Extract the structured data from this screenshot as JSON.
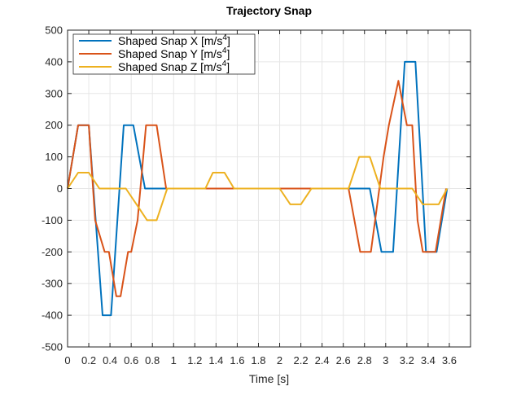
{
  "chart_data": {
    "type": "line",
    "title": "Trajectory Snap",
    "xlabel": "Time [s]",
    "ylabel": "",
    "xlim": [
      0,
      3.8
    ],
    "ylim": [
      -500,
      500
    ],
    "grid": true,
    "legend_location": "top-left",
    "x_ticks": [
      "0",
      "0.2",
      "0.4",
      "0.6",
      "0.8",
      "1",
      "1.2",
      "1.4",
      "1.6",
      "1.8",
      "2",
      "2.2",
      "2.4",
      "2.6",
      "2.8",
      "3",
      "3.2",
      "3.4",
      "3.6"
    ],
    "y_ticks": [
      "500",
      "400",
      "300",
      "200",
      "100",
      "0",
      "-100",
      "-200",
      "-300",
      "-400",
      "-500"
    ],
    "series": [
      {
        "name": "Shaped Snap X [m/s",
        "name_sup": "4",
        "name_suffix": "]",
        "color": "#0072BD",
        "x": [
          0,
          0.1,
          0.2,
          0.33,
          0.41,
          0.53,
          0.62,
          0.73,
          0.93,
          1.6,
          2.65,
          2.85,
          2.96,
          3.07,
          3.18,
          3.28,
          3.38,
          3.48,
          3.58
        ],
        "y": [
          0,
          200,
          200,
          -400,
          -400,
          200,
          200,
          0,
          0,
          0,
          0,
          0,
          -200,
          -200,
          400,
          400,
          -200,
          -200,
          0
        ]
      },
      {
        "name": "Shaped Snap Y [m/s",
        "name_sup": "4",
        "name_suffix": "]",
        "color": "#D95319",
        "x": [
          0,
          0.1,
          0.2,
          0.26,
          0.35,
          0.39,
          0.46,
          0.5,
          0.57,
          0.6,
          0.66,
          0.74,
          0.84,
          0.93,
          1.5,
          2.3,
          2.65,
          2.76,
          2.86,
          2.98,
          3.03,
          3.12,
          3.2,
          3.25,
          3.3,
          3.35,
          3.47,
          3.57
        ],
        "y": [
          0,
          200,
          200,
          -100,
          -200,
          -200,
          -340,
          -340,
          -200,
          -200,
          -100,
          200,
          200,
          0,
          0,
          0,
          0,
          -200,
          -200,
          100,
          200,
          340,
          200,
          200,
          -100,
          -200,
          -200,
          0
        ]
      },
      {
        "name": "Shaped Snap Z [m/s",
        "name_sup": "4",
        "name_suffix": "]",
        "color": "#EDB120",
        "x": [
          0,
          0.1,
          0.2,
          0.3,
          0.55,
          0.65,
          0.75,
          0.84,
          0.94,
          1.3,
          1.37,
          1.48,
          1.57,
          2.0,
          2.1,
          2.2,
          2.3,
          2.65,
          2.75,
          2.85,
          2.95,
          3.05,
          3.25,
          3.35,
          3.43,
          3.5,
          3.58
        ],
        "y": [
          0,
          50,
          50,
          0,
          0,
          -50,
          -100,
          -100,
          0,
          0,
          50,
          50,
          0,
          0,
          -50,
          -50,
          0,
          0,
          100,
          100,
          0,
          0,
          0,
          -50,
          -50,
          -50,
          0
        ]
      }
    ]
  }
}
